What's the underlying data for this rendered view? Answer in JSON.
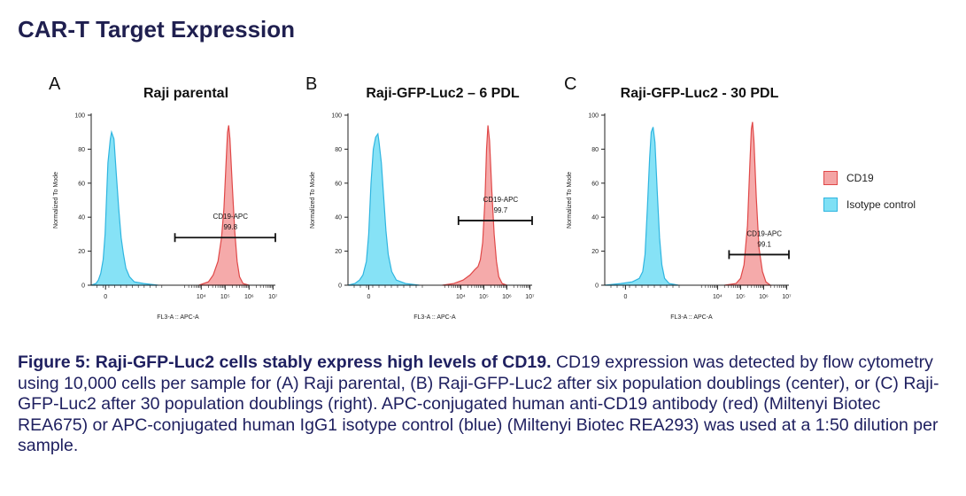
{
  "page": {
    "title": "CAR-T Target Expression"
  },
  "legend": {
    "items": [
      {
        "label": "CD19",
        "fill": "#f4a5a5",
        "stroke": "#e04848"
      },
      {
        "label": "Isotype control",
        "fill": "#7fe0f5",
        "stroke": "#2fb5e0"
      }
    ]
  },
  "caption": {
    "bold": "Figure 5: Raji-GFP-Luc2 cells stably express high levels of CD19.",
    "text": " CD19 expression was detected by flow cytometry using 10,000 cells per sample for (A) Raji parental, (B) Raji-GFP-Luc2 after six population doublings (center), or (C) Raji-GFP-Luc2 after 30 population doublings (right). APC-conjugated human anti-CD19 antibody (red) (Miltenyi Biotec REA675) or APC-conjugated human IgG1 isotype control (blue) (Miltenyi Biotec REA293) was used at a 1:50 dilution per sample."
  },
  "chart_data": [
    {
      "type": "area",
      "panel_letter": "A",
      "title": "Raji parental",
      "xlabel": "FL3-A :: APC-A",
      "ylabel": "Normalized To Mode",
      "ylim": [
        0,
        100
      ],
      "yticks": [
        "0",
        "20",
        "40",
        "60",
        "80",
        "100"
      ],
      "xticks": [
        {
          "x": 0,
          "label": "0"
        },
        {
          "x": 4,
          "label": "10⁴"
        },
        {
          "x": 5,
          "label": "10⁵"
        },
        {
          "x": 6,
          "label": "10⁶"
        },
        {
          "x": 7,
          "label": "10⁷"
        }
      ],
      "xlim": [
        -0.6,
        7.1
      ],
      "gate": {
        "label": "CD19-APC",
        "value": "99.8",
        "from": 2.9,
        "to": 7.1,
        "level": 28
      },
      "series": [
        {
          "name": "Isotype control",
          "fill": "#7fe0f5",
          "stroke": "#2fb5e0",
          "points": [
            [
              -0.6,
              0
            ],
            [
              -0.4,
              1
            ],
            [
              -0.3,
              3
            ],
            [
              -0.2,
              7
            ],
            [
              -0.1,
              15
            ],
            [
              -0.02,
              30
            ],
            [
              0.05,
              55
            ],
            [
              0.1,
              72
            ],
            [
              0.2,
              86
            ],
            [
              0.25,
              90
            ],
            [
              0.3,
              88
            ],
            [
              0.35,
              86
            ],
            [
              0.45,
              65
            ],
            [
              0.55,
              45
            ],
            [
              0.65,
              28
            ],
            [
              0.75,
              18
            ],
            [
              0.85,
              10
            ],
            [
              1.0,
              5
            ],
            [
              1.2,
              2
            ],
            [
              1.6,
              1
            ],
            [
              2.2,
              0
            ]
          ]
        },
        {
          "name": "CD19",
          "fill": "#f4a5a5",
          "stroke": "#e04848",
          "points": [
            [
              3.9,
              0
            ],
            [
              4.3,
              2
            ],
            [
              4.5,
              6
            ],
            [
              4.7,
              14
            ],
            [
              4.85,
              28
            ],
            [
              4.95,
              45
            ],
            [
              5.05,
              75
            ],
            [
              5.1,
              90
            ],
            [
              5.15,
              94
            ],
            [
              5.2,
              86
            ],
            [
              5.3,
              58
            ],
            [
              5.4,
              32
            ],
            [
              5.5,
              14
            ],
            [
              5.6,
              5
            ],
            [
              5.75,
              1
            ],
            [
              6.0,
              0
            ]
          ]
        }
      ]
    },
    {
      "type": "area",
      "panel_letter": "B",
      "title": "Raji-GFP-Luc2 – 6 PDL",
      "xlabel": "FL3-A :: APC-A",
      "ylabel": "Normalized To Mode",
      "ylim": [
        0,
        100
      ],
      "yticks": [
        "0",
        "20",
        "40",
        "60",
        "80",
        "100"
      ],
      "xticks": [
        {
          "x": 0,
          "label": "0"
        },
        {
          "x": 4,
          "label": "10⁴"
        },
        {
          "x": 5,
          "label": "10⁵"
        },
        {
          "x": 6,
          "label": "10⁶"
        },
        {
          "x": 7,
          "label": "10⁷"
        }
      ],
      "xlim": [
        -0.9,
        7.1
      ],
      "gate": {
        "label": "CD19-APC",
        "value": "99.7",
        "from": 3.9,
        "to": 7.1,
        "level": 38
      },
      "series": [
        {
          "name": "Isotype control",
          "fill": "#7fe0f5",
          "stroke": "#2fb5e0",
          "points": [
            [
              -0.9,
              0
            ],
            [
              -0.6,
              1
            ],
            [
              -0.4,
              3
            ],
            [
              -0.25,
              6
            ],
            [
              -0.1,
              14
            ],
            [
              0.0,
              30
            ],
            [
              0.1,
              60
            ],
            [
              0.2,
              80
            ],
            [
              0.3,
              87
            ],
            [
              0.4,
              89
            ],
            [
              0.45,
              84
            ],
            [
              0.55,
              72
            ],
            [
              0.65,
              52
            ],
            [
              0.75,
              32
            ],
            [
              0.85,
              18
            ],
            [
              1.0,
              8
            ],
            [
              1.2,
              3
            ],
            [
              1.6,
              1
            ],
            [
              2.2,
              0
            ]
          ]
        },
        {
          "name": "CD19",
          "fill": "#f4a5a5",
          "stroke": "#e04848",
          "points": [
            [
              3.2,
              0
            ],
            [
              3.7,
              1
            ],
            [
              4.1,
              3
            ],
            [
              4.4,
              6
            ],
            [
              4.6,
              9
            ],
            [
              4.75,
              11
            ],
            [
              4.85,
              15
            ],
            [
              4.95,
              25
            ],
            [
              5.05,
              50
            ],
            [
              5.12,
              80
            ],
            [
              5.18,
              94
            ],
            [
              5.25,
              85
            ],
            [
              5.35,
              55
            ],
            [
              5.45,
              30
            ],
            [
              5.55,
              14
            ],
            [
              5.65,
              5
            ],
            [
              5.8,
              1
            ],
            [
              6.0,
              0
            ]
          ]
        }
      ]
    },
    {
      "type": "area",
      "panel_letter": "C",
      "title": "Raji-GFP-Luc2 - 30 PDL",
      "xlabel": "FL3-A :: APC-A",
      "ylabel": "Normalized To Mode",
      "ylim": [
        0,
        100
      ],
      "yticks": [
        "0",
        "20",
        "40",
        "60",
        "80",
        "100"
      ],
      "xticks": [
        {
          "x": 0,
          "label": "0"
        },
        {
          "x": 4,
          "label": "10⁴"
        },
        {
          "x": 5,
          "label": "10⁵"
        },
        {
          "x": 6,
          "label": "10⁶"
        },
        {
          "x": 7,
          "label": "10⁷"
        }
      ],
      "xlim": [
        -0.9,
        7.1
      ],
      "gate": {
        "label": "CD19-APC",
        "value": "99.1",
        "from": 4.5,
        "to": 7.1,
        "level": 18
      },
      "series": [
        {
          "name": "Isotype control",
          "fill": "#7fe0f5",
          "stroke": "#2fb5e0",
          "points": [
            [
              -0.9,
              0
            ],
            [
              -0.2,
              1
            ],
            [
              0.3,
              2
            ],
            [
              0.6,
              4
            ],
            [
              0.75,
              8
            ],
            [
              0.85,
              18
            ],
            [
              0.95,
              45
            ],
            [
              1.05,
              75
            ],
            [
              1.12,
              90
            ],
            [
              1.2,
              93
            ],
            [
              1.28,
              84
            ],
            [
              1.38,
              55
            ],
            [
              1.48,
              28
            ],
            [
              1.58,
              12
            ],
            [
              1.7,
              4
            ],
            [
              1.9,
              1
            ],
            [
              2.3,
              0
            ]
          ]
        },
        {
          "name": "CD19",
          "fill": "#f4a5a5",
          "stroke": "#e04848",
          "points": [
            [
              4.3,
              0
            ],
            [
              4.8,
              1
            ],
            [
              5.0,
              4
            ],
            [
              5.15,
              12
            ],
            [
              5.3,
              35
            ],
            [
              5.4,
              70
            ],
            [
              5.47,
              92
            ],
            [
              5.52,
              96
            ],
            [
              5.58,
              85
            ],
            [
              5.68,
              52
            ],
            [
              5.8,
              22
            ],
            [
              5.95,
              8
            ],
            [
              6.1,
              2
            ],
            [
              6.3,
              0
            ]
          ]
        }
      ]
    }
  ]
}
